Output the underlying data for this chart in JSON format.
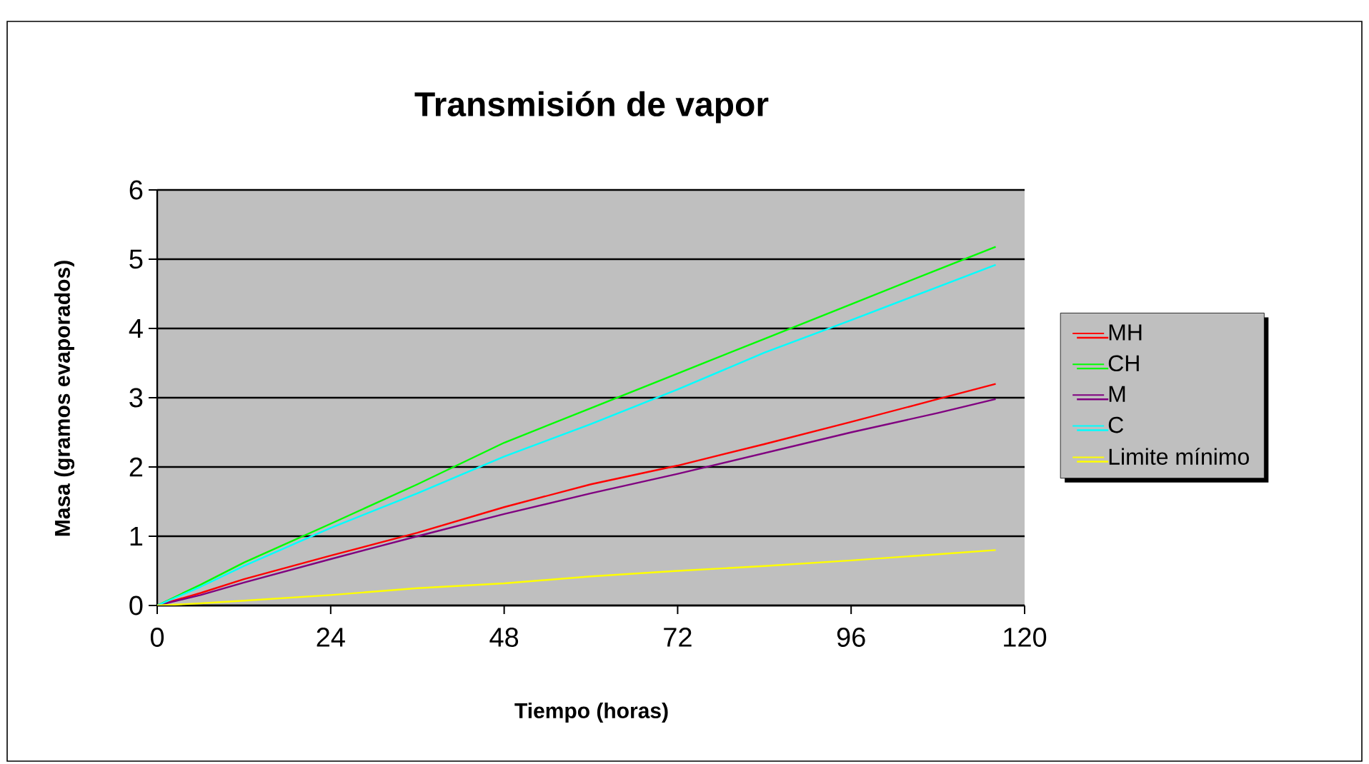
{
  "chart_data": {
    "type": "line",
    "title": "Transmisión de vapor",
    "xlabel": "Tiempo (horas)",
    "ylabel": "Masa (gramos evaporados)",
    "x": [
      0,
      6,
      12,
      24,
      36,
      48,
      60,
      72,
      84,
      96,
      108,
      116
    ],
    "xlim": [
      0,
      120
    ],
    "xticks": [
      0,
      24,
      48,
      72,
      96,
      120
    ],
    "ylim": [
      0,
      6
    ],
    "yticks": [
      0,
      1,
      2,
      3,
      4,
      5,
      6
    ],
    "grid": "y",
    "legend": "right",
    "marker": "none",
    "line_style": "solid",
    "series": [
      {
        "name": "MH",
        "color": "#ff0000",
        "values": [
          0,
          0.18,
          0.38,
          0.72,
          1.05,
          1.42,
          1.75,
          2.02,
          2.33,
          2.65,
          2.98,
          3.2
        ]
      },
      {
        "name": "CH",
        "color": "#00ff00",
        "values": [
          0,
          0.3,
          0.62,
          1.18,
          1.75,
          2.35,
          2.85,
          3.35,
          3.85,
          4.35,
          4.85,
          5.18
        ]
      },
      {
        "name": "M",
        "color": "#800080",
        "values": [
          0,
          0.15,
          0.33,
          0.67,
          1.0,
          1.32,
          1.62,
          1.9,
          2.2,
          2.5,
          2.78,
          2.98
        ]
      },
      {
        "name": "C",
        "color": "#00ffff",
        "values": [
          0,
          0.27,
          0.57,
          1.12,
          1.62,
          2.15,
          2.62,
          3.12,
          3.65,
          4.12,
          4.6,
          4.92
        ]
      },
      {
        "name": "Limite mínimo",
        "color": "#ffff00",
        "values": [
          0,
          0.03,
          0.07,
          0.15,
          0.25,
          0.32,
          0.42,
          0.5,
          0.57,
          0.65,
          0.74,
          0.8
        ]
      }
    ]
  }
}
